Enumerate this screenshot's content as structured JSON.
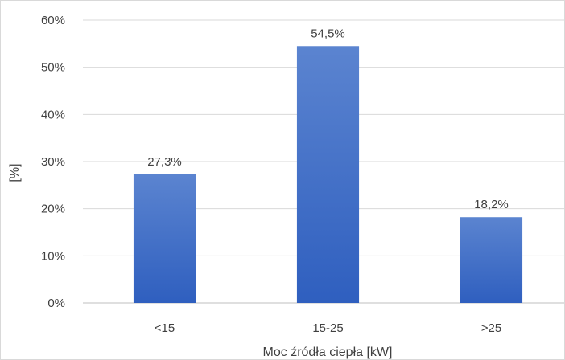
{
  "chart_data": {
    "type": "bar",
    "categories": [
      "<15",
      "15-25",
      ">25"
    ],
    "values": [
      27.3,
      54.5,
      18.2
    ],
    "data_labels": [
      "27,3%",
      "54,5%",
      "18,2%"
    ],
    "title": "",
    "xlabel": "Moc źródła ciepła [kW]",
    "ylabel": "[%]",
    "ylim": [
      0,
      60
    ],
    "yticks": [
      0,
      10,
      20,
      30,
      40,
      50,
      60
    ],
    "ytick_labels": [
      "0%",
      "10%",
      "20%",
      "30%",
      "40%",
      "50%",
      "60%"
    ],
    "grid": true,
    "legend": "none",
    "bar_color_top": "#5b84d0",
    "bar_color_bottom": "#2f5fbf"
  }
}
